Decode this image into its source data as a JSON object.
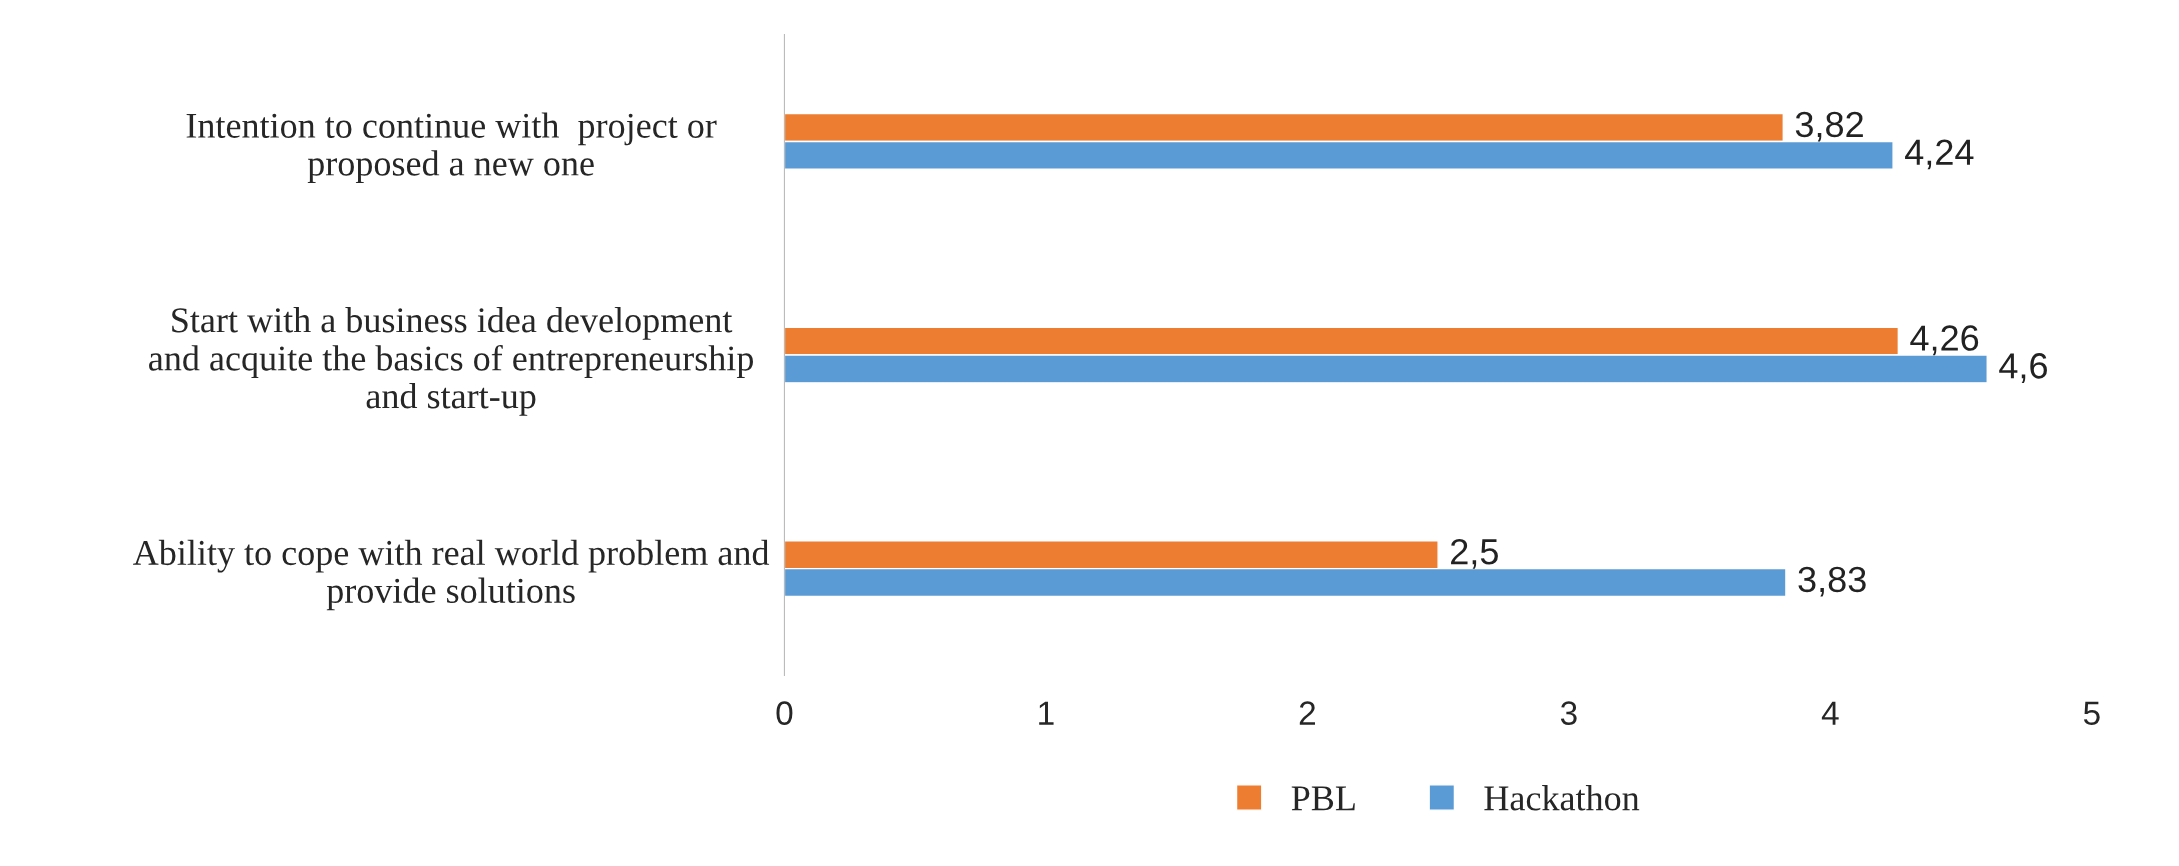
{
  "chart_data": {
    "type": "bar",
    "orientation": "horizontal",
    "categories": [
      "Intention to continue with  project or\nproposed a new one",
      "Start with a business idea development\nand acquite the basics of entrepreneurship\nand start-up",
      "Ability to cope with real world problem and\nprovide solutions"
    ],
    "series": [
      {
        "name": "PBL",
        "color": "#ed7d31",
        "values": [
          3.82,
          4.26,
          2.5
        ],
        "value_labels": [
          "3,82",
          "4,26",
          "2,5"
        ]
      },
      {
        "name": "Hackathon",
        "color": "#5b9bd5",
        "values": [
          4.24,
          4.6,
          3.83
        ],
        "value_labels": [
          "4,24",
          "4,6",
          "3,83"
        ]
      }
    ],
    "xlim": [
      0,
      5
    ],
    "xticks": [
      0,
      1,
      2,
      3,
      4,
      5
    ],
    "grid": false,
    "legend": "bottom"
  }
}
